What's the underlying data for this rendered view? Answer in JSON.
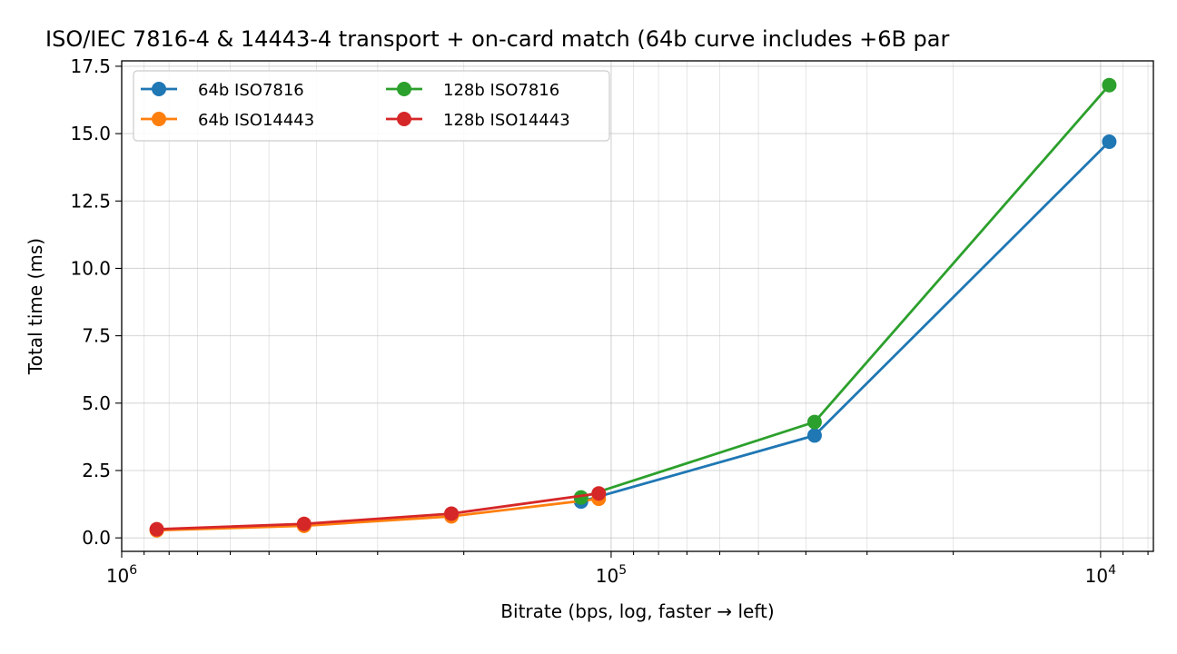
{
  "chart_data": {
    "type": "line",
    "title": "ISO/IEC 7816-4 & 14443-4 transport + on-card match  (64b curve includes +6B par",
    "xlabel": "Bitrate (bps, log, faster → left)",
    "ylabel": "Total time (ms)",
    "x_scale": "log",
    "x_reversed": true,
    "xlim": [
      1000000,
      7800
    ],
    "ylim": [
      -0.5,
      17.7
    ],
    "grid": true,
    "legend_position": "top-left",
    "legend_columns": 2,
    "x_ticks": [
      {
        "value": 1000000,
        "base": "10",
        "exp": "6"
      },
      {
        "value": 100000,
        "base": "10",
        "exp": "5"
      },
      {
        "value": 10000,
        "base": "10",
        "exp": "4"
      }
    ],
    "y_ticks": [
      {
        "value": 0,
        "label": "0.0"
      },
      {
        "value": 2.5,
        "label": "2.5"
      },
      {
        "value": 5,
        "label": "5.0"
      },
      {
        "value": 7.5,
        "label": "7.5"
      },
      {
        "value": 10,
        "label": "10.0"
      },
      {
        "value": 12.5,
        "label": "12.5"
      },
      {
        "value": 15,
        "label": "15.0"
      },
      {
        "value": 17.5,
        "label": "17.5"
      }
    ],
    "series": [
      {
        "name": "64b ISO7816",
        "color": "#1f77b4",
        "points": [
          [
            115200,
            1.35
          ],
          [
            38400,
            3.8
          ],
          [
            9600,
            14.7
          ]
        ]
      },
      {
        "name": "64b ISO14443",
        "color": "#ff7f0e",
        "points": [
          [
            848000,
            0.28
          ],
          [
            424000,
            0.45
          ],
          [
            212000,
            0.8
          ],
          [
            106000,
            1.45
          ]
        ]
      },
      {
        "name": "128b ISO7816",
        "color": "#2ca02c",
        "points": [
          [
            115200,
            1.5
          ],
          [
            38400,
            4.3
          ],
          [
            9600,
            16.8
          ]
        ]
      },
      {
        "name": "128b ISO14443",
        "color": "#d62728",
        "points": [
          [
            848000,
            0.32
          ],
          [
            424000,
            0.52
          ],
          [
            212000,
            0.9
          ],
          [
            106000,
            1.65
          ]
        ]
      }
    ]
  }
}
